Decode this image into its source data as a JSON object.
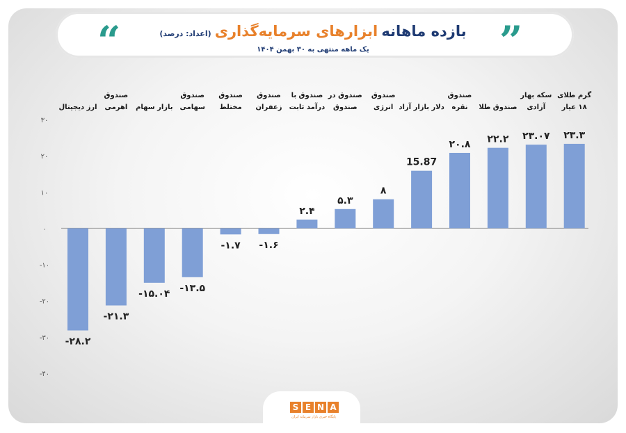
{
  "header": {
    "title_main": "بازده ماهانه",
    "title_accent": "ابزارهای سرمایه‌گذاری",
    "unit_note": "(اعداد: درصد)",
    "subtitle": "یک ماهه منتهی به ۳۰ بهمن ۱۴۰۴",
    "quote_left": "“",
    "quote_right": "”"
  },
  "logo": {
    "letters": [
      "S",
      "E",
      "N",
      "A"
    ],
    "tagline": "پایگاه خبری بازار سرمایه ایران"
  },
  "colors": {
    "bar": "#7f9fd6",
    "title_main": "#1f3b73",
    "title_accent": "#e8812b",
    "quote": "#2a9b8d",
    "axis": "#555555"
  },
  "chart_data": {
    "type": "bar",
    "title": "بازده ماهانه ابزارهای سرمایه‌گذاری",
    "xlabel": "",
    "ylabel": "",
    "ylim": [
      -40,
      30
    ],
    "y_ticks": [
      30,
      20,
      10,
      0,
      -10,
      -20,
      -30,
      -40
    ],
    "y_tick_labels": [
      "۳۰",
      "۲۰",
      "۱۰",
      "۰",
      "-۱۰",
      "-۲۰",
      "-۳۰",
      "-۴۰"
    ],
    "grid": false,
    "categories": [
      [
        "ارز دیجیتال"
      ],
      [
        "صندوق",
        "اهرمی"
      ],
      [
        "بازار سهام"
      ],
      [
        "صندوق",
        "سهامی"
      ],
      [
        "صندوق",
        "مختلط"
      ],
      [
        "صندوق",
        "زعفران"
      ],
      [
        "صندوق با",
        "درآمد ثابت"
      ],
      [
        "صندوق در",
        "صندوق"
      ],
      [
        "صندوق",
        "انرژی"
      ],
      [
        "دلار بازار آزاد"
      ],
      [
        "صندوق",
        "نقره"
      ],
      [
        "صندوق طلا"
      ],
      [
        "سکه بهار",
        "آزادی"
      ],
      [
        "گرم طلای",
        "۱۸ عیار"
      ]
    ],
    "values": [
      -28.2,
      -21.3,
      -15.04,
      -13.5,
      -1.7,
      -1.6,
      2.4,
      5.3,
      8,
      15.87,
      20.8,
      22.2,
      23.07,
      23.3
    ],
    "value_labels": [
      "-۲۸.۲",
      "-۲۱.۳",
      "-۱۵.۰۴",
      "-۱۳.۵",
      "-۱.۷",
      "-۱.۶",
      "۲.۴",
      "۵.۳",
      "۸",
      "15.87",
      "۲۰.۸",
      "۲۲.۲",
      "۲۳.۰۷",
      "۲۳.۳"
    ]
  }
}
